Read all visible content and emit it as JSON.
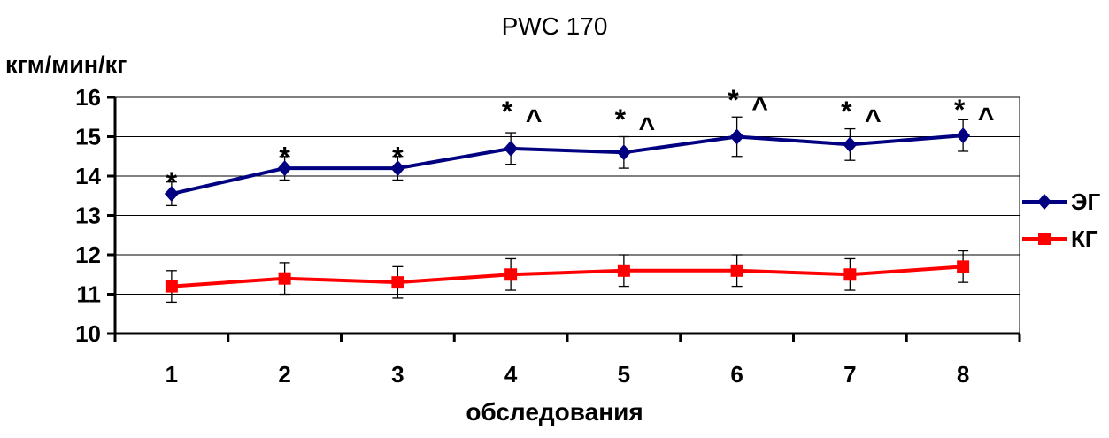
{
  "chart_data": {
    "type": "line",
    "title": "PWC 170",
    "ylabel": "кгм/мин/кг",
    "xlabel": "обследования",
    "categories": [
      "1",
      "2",
      "3",
      "4",
      "5",
      "6",
      "7",
      "8"
    ],
    "ylim": [
      10,
      16
    ],
    "yticks": [
      "10",
      "11",
      "12",
      "13",
      "14",
      "15",
      "16"
    ],
    "grid": "horizontal",
    "legend_position": "right",
    "series": [
      {
        "name": "ЭГ",
        "color": "#000080",
        "marker": "diamond",
        "values": [
          13.55,
          14.2,
          14.2,
          14.7,
          14.6,
          15.0,
          14.8,
          15.03
        ],
        "errors": [
          0.3,
          0.3,
          0.3,
          0.4,
          0.4,
          0.5,
          0.4,
          0.4
        ]
      },
      {
        "name": "КГ",
        "color": "#ff0000",
        "marker": "square",
        "values": [
          11.2,
          11.4,
          11.3,
          11.5,
          11.6,
          11.6,
          11.5,
          11.7
        ],
        "errors": [
          0.4,
          0.4,
          0.4,
          0.4,
          0.4,
          0.4,
          0.4,
          0.4
        ]
      }
    ],
    "annotations": [
      {
        "category": "1",
        "text": "*",
        "y": 13.95
      },
      {
        "category": "2",
        "text": "*",
        "y": 14.6
      },
      {
        "category": "3",
        "text": "*",
        "y": 14.6
      },
      {
        "category": "4",
        "text": "*",
        "y": 15.75
      },
      {
        "category": "4",
        "text": "^",
        "y": 15.55
      },
      {
        "category": "5",
        "text": "*",
        "y": 15.55
      },
      {
        "category": "5",
        "text": "^",
        "y": 15.35
      },
      {
        "category": "6",
        "text": "*",
        "y": 16.05
      },
      {
        "category": "6",
        "text": "^",
        "y": 15.85
      },
      {
        "category": "7",
        "text": "*",
        "y": 15.75
      },
      {
        "category": "7",
        "text": "^",
        "y": 15.55
      },
      {
        "category": "8",
        "text": "*",
        "y": 15.8
      },
      {
        "category": "8",
        "text": "^",
        "y": 15.6
      }
    ]
  }
}
